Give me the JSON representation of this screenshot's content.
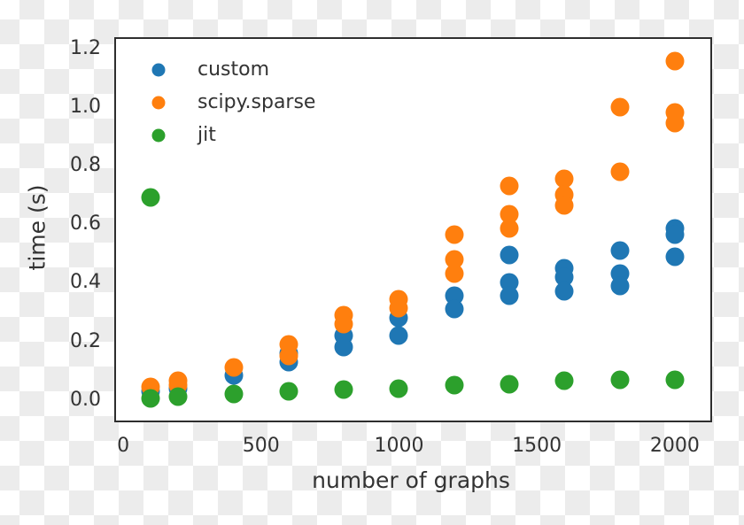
{
  "chart_data": {
    "type": "scatter",
    "title": "",
    "xlabel": "number of graphs",
    "ylabel": "time (s)",
    "xlim": [
      -26,
      2129
    ],
    "ylim": [
      -0.07,
      1.232
    ],
    "grid": false,
    "legend_position": "upper-left",
    "xticks": {
      "values": [
        0,
        500,
        1000,
        1500,
        2000
      ],
      "labels": [
        "0",
        "500",
        "1000",
        "1500",
        "2000"
      ]
    },
    "yticks": {
      "values": [
        0.0,
        0.2,
        0.4,
        0.6,
        0.8,
        1.0,
        1.2
      ],
      "labels": [
        "0.0",
        "0.2",
        "0.4",
        "0.6",
        "0.8",
        "1.0",
        "1.2"
      ]
    },
    "series": [
      {
        "name": "custom",
        "color": "#1f77b4",
        "points": [
          [
            100,
            0.03
          ],
          [
            200,
            0.04
          ],
          [
            400,
            0.085
          ],
          [
            600,
            0.16
          ],
          [
            600,
            0.13
          ],
          [
            800,
            0.22
          ],
          [
            800,
            0.18
          ],
          [
            1000,
            0.28
          ],
          [
            1000,
            0.22
          ],
          [
            1200,
            0.355
          ],
          [
            1200,
            0.31
          ],
          [
            1400,
            0.495
          ],
          [
            1400,
            0.4
          ],
          [
            1400,
            0.355
          ],
          [
            1600,
            0.45
          ],
          [
            1600,
            0.42
          ],
          [
            1600,
            0.37
          ],
          [
            1800,
            0.51
          ],
          [
            1800,
            0.43
          ],
          [
            1800,
            0.39
          ],
          [
            2000,
            0.585
          ],
          [
            2000,
            0.565
          ],
          [
            2000,
            0.49
          ]
        ]
      },
      {
        "name": "scipy.sparse",
        "color": "#ff7f0e",
        "points": [
          [
            100,
            0.045
          ],
          [
            200,
            0.065
          ],
          [
            200,
            0.05
          ],
          [
            400,
            0.11
          ],
          [
            600,
            0.19
          ],
          [
            600,
            0.15
          ],
          [
            800,
            0.29
          ],
          [
            800,
            0.26
          ],
          [
            1000,
            0.345
          ],
          [
            1000,
            0.315
          ],
          [
            1200,
            0.565
          ],
          [
            1200,
            0.48
          ],
          [
            1200,
            0.43
          ],
          [
            1400,
            0.73
          ],
          [
            1400,
            0.635
          ],
          [
            1400,
            0.585
          ],
          [
            1600,
            0.755
          ],
          [
            1600,
            0.7
          ],
          [
            1600,
            0.665
          ],
          [
            1800,
            1.0
          ],
          [
            1800,
            0.78
          ],
          [
            2000,
            1.155
          ],
          [
            2000,
            0.98
          ],
          [
            2000,
            0.945
          ]
        ]
      },
      {
        "name": "jit",
        "color": "#2ca02c",
        "points": [
          [
            100,
            0.69
          ],
          [
            100,
            0.005
          ],
          [
            200,
            0.012
          ],
          [
            400,
            0.02
          ],
          [
            600,
            0.03
          ],
          [
            800,
            0.035
          ],
          [
            1000,
            0.04
          ],
          [
            1200,
            0.05
          ],
          [
            1400,
            0.055
          ],
          [
            1600,
            0.065
          ],
          [
            1800,
            0.068
          ],
          [
            2000,
            0.068
          ]
        ]
      }
    ]
  },
  "layout_colors": {
    "checker_light": "#ffffff",
    "checker_dark": "#ececec",
    "plot_background": "#ffffff",
    "spine": "#2e2e2e",
    "text": "#333333"
  }
}
